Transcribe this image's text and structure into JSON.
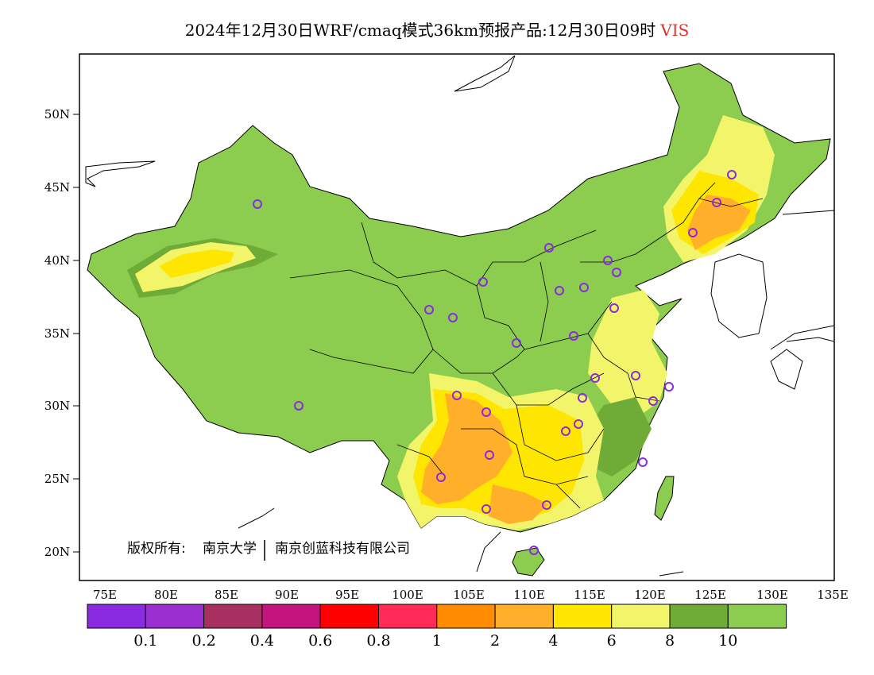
{
  "title": {
    "main": "2024年12月30日WRF/cmaq模式36km预报产品:12月30日09时",
    "variable": "VIS"
  },
  "axes": {
    "lon_ticks": [
      "75E",
      "80E",
      "85E",
      "90E",
      "95E",
      "100E",
      "105E",
      "110E",
      "115E",
      "120E",
      "125E",
      "130E",
      "135E"
    ],
    "lat_ticks": [
      "50N",
      "45N",
      "40N",
      "35N",
      "30N",
      "25N",
      "20N"
    ]
  },
  "copyright": {
    "label": "版权所有:",
    "org1": "南京大学",
    "org2": "南京创蓝科技有限公司"
  },
  "colorbar": {
    "colors": [
      "#8a2be2",
      "#9b30d0",
      "#a83060",
      "#c4147e",
      "#ff0000",
      "#ff2a56",
      "#ff8c00",
      "#ffaf2a",
      "#ffe600",
      "#f2f56a",
      "#6fab37",
      "#8ccc4e"
    ],
    "labels": [
      "0.1",
      "0.2",
      "0.4",
      "0.6",
      "0.8",
      "1",
      "2",
      "4",
      "6",
      "8",
      "10"
    ]
  },
  "map_colors": {
    "ocean": "#ffffff",
    "vis_gt10": "#8ccc4e",
    "vis_8_10": "#6fab37",
    "vis_6_8": "#f2f56a",
    "vis_4_6": "#ffe600",
    "vis_2_4": "#ffaf2a",
    "station_marker": "#8a2be2"
  }
}
